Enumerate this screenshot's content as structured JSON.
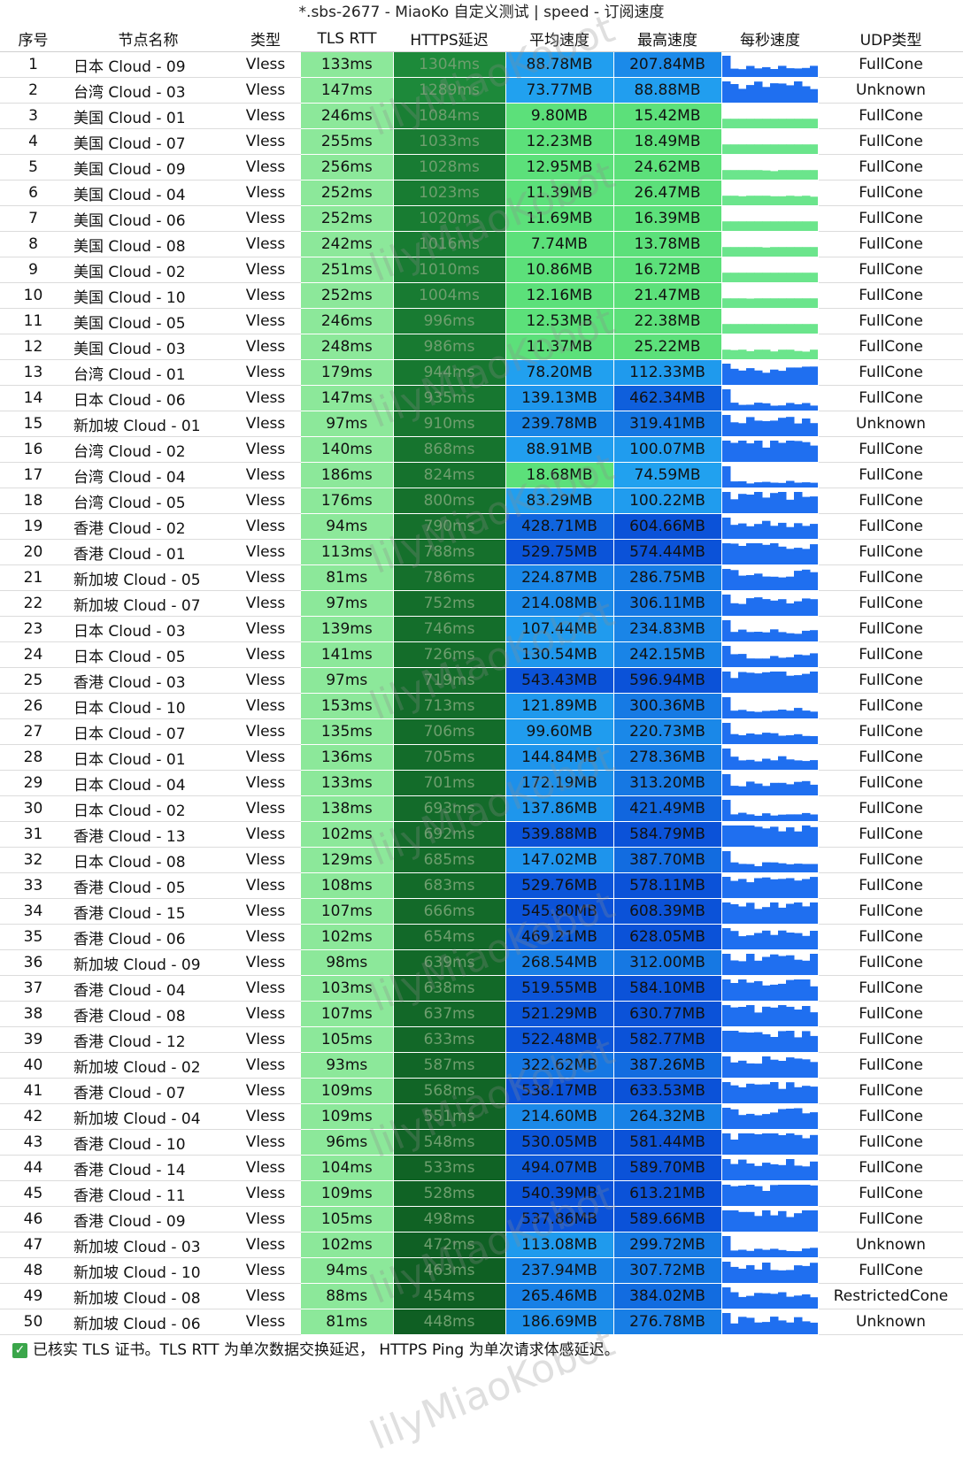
{
  "window_title": "*.sbs-2677 - MiaoKo 自定义测试 | speed - 订阅速度",
  "columns": [
    "序号",
    "节点名称",
    "类型",
    "TLS RTT",
    "HTTPS延迟",
    "平均速度",
    "最高速度",
    "每秒速度",
    "UDP类型"
  ],
  "watermark": "lilyMiaoKobot",
  "footer_text": "已核实 TLS 证书。TLS RTT 为单次数据交换延迟， HTTPS Ping 为单次请求体感延迟。",
  "colors": {
    "tls_bg": "#8ce89a",
    "https_high": "#1d8a3a",
    "https_low": "#0f5f23",
    "speed_blue_light": "#22a3f0",
    "speed_blue_dark": "#0b52d8",
    "speed_green": "#5ce07a",
    "spark_blue": "#1f6ff0",
    "spark_green": "#6be58c"
  },
  "rows": [
    {
      "idx": "1",
      "name": "日本 Cloud - 09",
      "type": "Vless",
      "tls": "133ms",
      "https": "1304ms",
      "avg": "88.78MB",
      "max": "207.84MB",
      "udp": "FullCone",
      "avg_mb": 88.78,
      "max_mb": 207.84
    },
    {
      "idx": "2",
      "name": "台湾 Cloud - 03",
      "type": "Vless",
      "tls": "147ms",
      "https": "1289ms",
      "avg": "73.77MB",
      "max": "88.88MB",
      "udp": "Unknown",
      "avg_mb": 73.77,
      "max_mb": 88.88
    },
    {
      "idx": "3",
      "name": "美国 Cloud - 01",
      "type": "Vless",
      "tls": "246ms",
      "https": "1084ms",
      "avg": "9.80MB",
      "max": "15.42MB",
      "udp": "FullCone",
      "avg_mb": 9.8,
      "max_mb": 15.42
    },
    {
      "idx": "4",
      "name": "美国 Cloud - 07",
      "type": "Vless",
      "tls": "255ms",
      "https": "1033ms",
      "avg": "12.23MB",
      "max": "18.49MB",
      "udp": "FullCone",
      "avg_mb": 12.23,
      "max_mb": 18.49
    },
    {
      "idx": "5",
      "name": "美国 Cloud - 09",
      "type": "Vless",
      "tls": "256ms",
      "https": "1028ms",
      "avg": "12.95MB",
      "max": "24.62MB",
      "udp": "FullCone",
      "avg_mb": 12.95,
      "max_mb": 24.62
    },
    {
      "idx": "6",
      "name": "美国 Cloud - 04",
      "type": "Vless",
      "tls": "252ms",
      "https": "1023ms",
      "avg": "11.39MB",
      "max": "26.47MB",
      "udp": "FullCone",
      "avg_mb": 11.39,
      "max_mb": 26.47
    },
    {
      "idx": "7",
      "name": "美国 Cloud - 06",
      "type": "Vless",
      "tls": "252ms",
      "https": "1020ms",
      "avg": "11.69MB",
      "max": "16.39MB",
      "udp": "FullCone",
      "avg_mb": 11.69,
      "max_mb": 16.39
    },
    {
      "idx": "8",
      "name": "美国 Cloud - 08",
      "type": "Vless",
      "tls": "242ms",
      "https": "1016ms",
      "avg": "7.74MB",
      "max": "13.78MB",
      "udp": "FullCone",
      "avg_mb": 7.74,
      "max_mb": 13.78
    },
    {
      "idx": "9",
      "name": "美国 Cloud - 02",
      "type": "Vless",
      "tls": "251ms",
      "https": "1010ms",
      "avg": "10.86MB",
      "max": "16.72MB",
      "udp": "FullCone",
      "avg_mb": 10.86,
      "max_mb": 16.72
    },
    {
      "idx": "10",
      "name": "美国 Cloud - 10",
      "type": "Vless",
      "tls": "252ms",
      "https": "1004ms",
      "avg": "12.16MB",
      "max": "21.47MB",
      "udp": "FullCone",
      "avg_mb": 12.16,
      "max_mb": 21.47
    },
    {
      "idx": "11",
      "name": "美国 Cloud - 05",
      "type": "Vless",
      "tls": "246ms",
      "https": "996ms",
      "avg": "12.53MB",
      "max": "22.38MB",
      "udp": "FullCone",
      "avg_mb": 12.53,
      "max_mb": 22.38
    },
    {
      "idx": "12",
      "name": "美国 Cloud - 03",
      "type": "Vless",
      "tls": "248ms",
      "https": "986ms",
      "avg": "11.37MB",
      "max": "25.22MB",
      "udp": "FullCone",
      "avg_mb": 11.37,
      "max_mb": 25.22
    },
    {
      "idx": "13",
      "name": "台湾 Cloud - 01",
      "type": "Vless",
      "tls": "179ms",
      "https": "944ms",
      "avg": "78.20MB",
      "max": "112.33MB",
      "udp": "FullCone",
      "avg_mb": 78.2,
      "max_mb": 112.33
    },
    {
      "idx": "14",
      "name": "日本 Cloud - 06",
      "type": "Vless",
      "tls": "147ms",
      "https": "935ms",
      "avg": "139.13MB",
      "max": "462.34MB",
      "udp": "FullCone",
      "avg_mb": 139.13,
      "max_mb": 462.34
    },
    {
      "idx": "15",
      "name": "新加坡 Cloud - 01",
      "type": "Vless",
      "tls": "97ms",
      "https": "910ms",
      "avg": "239.78MB",
      "max": "319.41MB",
      "udp": "Unknown",
      "avg_mb": 239.78,
      "max_mb": 319.41
    },
    {
      "idx": "16",
      "name": "台湾 Cloud - 02",
      "type": "Vless",
      "tls": "140ms",
      "https": "868ms",
      "avg": "88.91MB",
      "max": "100.07MB",
      "udp": "FullCone",
      "avg_mb": 88.91,
      "max_mb": 100.07
    },
    {
      "idx": "17",
      "name": "台湾 Cloud - 04",
      "type": "Vless",
      "tls": "186ms",
      "https": "824ms",
      "avg": "18.68MB",
      "max": "74.59MB",
      "udp": "FullCone",
      "avg_mb": 18.68,
      "max_mb": 74.59
    },
    {
      "idx": "18",
      "name": "台湾 Cloud - 05",
      "type": "Vless",
      "tls": "176ms",
      "https": "800ms",
      "avg": "83.29MB",
      "max": "100.22MB",
      "udp": "FullCone",
      "avg_mb": 83.29,
      "max_mb": 100.22
    },
    {
      "idx": "19",
      "name": "香港 Cloud - 02",
      "type": "Vless",
      "tls": "94ms",
      "https": "790ms",
      "avg": "428.71MB",
      "max": "604.66MB",
      "udp": "FullCone",
      "avg_mb": 428.71,
      "max_mb": 604.66
    },
    {
      "idx": "20",
      "name": "香港 Cloud - 01",
      "type": "Vless",
      "tls": "113ms",
      "https": "788ms",
      "avg": "529.75MB",
      "max": "574.44MB",
      "udp": "FullCone",
      "avg_mb": 529.75,
      "max_mb": 574.44
    },
    {
      "idx": "21",
      "name": "新加坡 Cloud - 05",
      "type": "Vless",
      "tls": "81ms",
      "https": "786ms",
      "avg": "224.87MB",
      "max": "286.75MB",
      "udp": "FullCone",
      "avg_mb": 224.87,
      "max_mb": 286.75
    },
    {
      "idx": "22",
      "name": "新加坡 Cloud - 07",
      "type": "Vless",
      "tls": "97ms",
      "https": "752ms",
      "avg": "214.08MB",
      "max": "306.11MB",
      "udp": "FullCone",
      "avg_mb": 214.08,
      "max_mb": 306.11
    },
    {
      "idx": "23",
      "name": "日本 Cloud - 03",
      "type": "Vless",
      "tls": "139ms",
      "https": "746ms",
      "avg": "107.44MB",
      "max": "234.83MB",
      "udp": "FullCone",
      "avg_mb": 107.44,
      "max_mb": 234.83
    },
    {
      "idx": "24",
      "name": "日本 Cloud - 05",
      "type": "Vless",
      "tls": "141ms",
      "https": "726ms",
      "avg": "130.54MB",
      "max": "242.15MB",
      "udp": "FullCone",
      "avg_mb": 130.54,
      "max_mb": 242.15
    },
    {
      "idx": "25",
      "name": "香港 Cloud - 03",
      "type": "Vless",
      "tls": "97ms",
      "https": "719ms",
      "avg": "543.43MB",
      "max": "596.94MB",
      "udp": "FullCone",
      "avg_mb": 543.43,
      "max_mb": 596.94
    },
    {
      "idx": "26",
      "name": "日本 Cloud - 10",
      "type": "Vless",
      "tls": "153ms",
      "https": "713ms",
      "avg": "121.89MB",
      "max": "300.36MB",
      "udp": "FullCone",
      "avg_mb": 121.89,
      "max_mb": 300.36
    },
    {
      "idx": "27",
      "name": "日本 Cloud - 07",
      "type": "Vless",
      "tls": "135ms",
      "https": "706ms",
      "avg": "99.60MB",
      "max": "220.73MB",
      "udp": "FullCone",
      "avg_mb": 99.6,
      "max_mb": 220.73
    },
    {
      "idx": "28",
      "name": "日本 Cloud - 01",
      "type": "Vless",
      "tls": "136ms",
      "https": "705ms",
      "avg": "144.84MB",
      "max": "278.36MB",
      "udp": "FullCone",
      "avg_mb": 144.84,
      "max_mb": 278.36
    },
    {
      "idx": "29",
      "name": "日本 Cloud - 04",
      "type": "Vless",
      "tls": "133ms",
      "https": "701ms",
      "avg": "172.19MB",
      "max": "313.20MB",
      "udp": "FullCone",
      "avg_mb": 172.19,
      "max_mb": 313.2
    },
    {
      "idx": "30",
      "name": "日本 Cloud - 02",
      "type": "Vless",
      "tls": "138ms",
      "https": "693ms",
      "avg": "137.86MB",
      "max": "421.49MB",
      "udp": "FullCone",
      "avg_mb": 137.86,
      "max_mb": 421.49
    },
    {
      "idx": "31",
      "name": "香港 Cloud - 13",
      "type": "Vless",
      "tls": "102ms",
      "https": "692ms",
      "avg": "539.88MB",
      "max": "584.79MB",
      "udp": "FullCone",
      "avg_mb": 539.88,
      "max_mb": 584.79
    },
    {
      "idx": "32",
      "name": "日本 Cloud - 08",
      "type": "Vless",
      "tls": "129ms",
      "https": "685ms",
      "avg": "147.02MB",
      "max": "387.70MB",
      "udp": "FullCone",
      "avg_mb": 147.02,
      "max_mb": 387.7
    },
    {
      "idx": "33",
      "name": "香港 Cloud - 05",
      "type": "Vless",
      "tls": "108ms",
      "https": "683ms",
      "avg": "529.76MB",
      "max": "578.11MB",
      "udp": "FullCone",
      "avg_mb": 529.76,
      "max_mb": 578.11
    },
    {
      "idx": "34",
      "name": "香港 Cloud - 15",
      "type": "Vless",
      "tls": "107ms",
      "https": "666ms",
      "avg": "545.80MB",
      "max": "608.39MB",
      "udp": "FullCone",
      "avg_mb": 545.8,
      "max_mb": 608.39
    },
    {
      "idx": "35",
      "name": "香港 Cloud - 06",
      "type": "Vless",
      "tls": "102ms",
      "https": "654ms",
      "avg": "469.21MB",
      "max": "628.05MB",
      "udp": "FullCone",
      "avg_mb": 469.21,
      "max_mb": 628.05
    },
    {
      "idx": "36",
      "name": "新加坡 Cloud - 09",
      "type": "Vless",
      "tls": "98ms",
      "https": "639ms",
      "avg": "268.54MB",
      "max": "312.00MB",
      "udp": "FullCone",
      "avg_mb": 268.54,
      "max_mb": 312.0
    },
    {
      "idx": "37",
      "name": "香港 Cloud - 04",
      "type": "Vless",
      "tls": "103ms",
      "https": "638ms",
      "avg": "519.55MB",
      "max": "584.10MB",
      "udp": "FullCone",
      "avg_mb": 519.55,
      "max_mb": 584.1
    },
    {
      "idx": "38",
      "name": "香港 Cloud - 08",
      "type": "Vless",
      "tls": "107ms",
      "https": "637ms",
      "avg": "521.29MB",
      "max": "630.77MB",
      "udp": "FullCone",
      "avg_mb": 521.29,
      "max_mb": 630.77
    },
    {
      "idx": "39",
      "name": "香港 Cloud - 12",
      "type": "Vless",
      "tls": "105ms",
      "https": "633ms",
      "avg": "522.48MB",
      "max": "582.77MB",
      "udp": "FullCone",
      "avg_mb": 522.48,
      "max_mb": 582.77
    },
    {
      "idx": "40",
      "name": "新加坡 Cloud - 02",
      "type": "Vless",
      "tls": "93ms",
      "https": "587ms",
      "avg": "322.62MB",
      "max": "387.26MB",
      "udp": "FullCone",
      "avg_mb": 322.62,
      "max_mb": 387.26
    },
    {
      "idx": "41",
      "name": "香港 Cloud - 07",
      "type": "Vless",
      "tls": "109ms",
      "https": "568ms",
      "avg": "538.17MB",
      "max": "633.53MB",
      "udp": "FullCone",
      "avg_mb": 538.17,
      "max_mb": 633.53
    },
    {
      "idx": "42",
      "name": "新加坡 Cloud - 04",
      "type": "Vless",
      "tls": "109ms",
      "https": "551ms",
      "avg": "214.60MB",
      "max": "264.32MB",
      "udp": "FullCone",
      "avg_mb": 214.6,
      "max_mb": 264.32
    },
    {
      "idx": "43",
      "name": "香港 Cloud - 10",
      "type": "Vless",
      "tls": "96ms",
      "https": "548ms",
      "avg": "530.05MB",
      "max": "581.44MB",
      "udp": "FullCone",
      "avg_mb": 530.05,
      "max_mb": 581.44
    },
    {
      "idx": "44",
      "name": "香港 Cloud - 14",
      "type": "Vless",
      "tls": "104ms",
      "https": "533ms",
      "avg": "494.07MB",
      "max": "589.70MB",
      "udp": "FullCone",
      "avg_mb": 494.07,
      "max_mb": 589.7
    },
    {
      "idx": "45",
      "name": "香港 Cloud - 11",
      "type": "Vless",
      "tls": "109ms",
      "https": "528ms",
      "avg": "540.39MB",
      "max": "613.21MB",
      "udp": "FullCone",
      "avg_mb": 540.39,
      "max_mb": 613.21
    },
    {
      "idx": "46",
      "name": "香港 Cloud - 09",
      "type": "Vless",
      "tls": "105ms",
      "https": "498ms",
      "avg": "537.86MB",
      "max": "589.66MB",
      "udp": "FullCone",
      "avg_mb": 537.86,
      "max_mb": 589.66
    },
    {
      "idx": "47",
      "name": "新加坡 Cloud - 03",
      "type": "Vless",
      "tls": "102ms",
      "https": "472ms",
      "avg": "113.08MB",
      "max": "299.72MB",
      "udp": "Unknown",
      "avg_mb": 113.08,
      "max_mb": 299.72
    },
    {
      "idx": "48",
      "name": "新加坡 Cloud - 10",
      "type": "Vless",
      "tls": "94ms",
      "https": "463ms",
      "avg": "237.94MB",
      "max": "307.72MB",
      "udp": "FullCone",
      "avg_mb": 237.94,
      "max_mb": 307.72
    },
    {
      "idx": "49",
      "name": "新加坡 Cloud - 08",
      "type": "Vless",
      "tls": "88ms",
      "https": "454ms",
      "avg": "265.46MB",
      "max": "384.02MB",
      "udp": "RestrictedCone",
      "avg_mb": 265.46,
      "max_mb": 384.02
    },
    {
      "idx": "50",
      "name": "新加坡 Cloud - 06",
      "type": "Vless",
      "tls": "81ms",
      "https": "448ms",
      "avg": "186.69MB",
      "max": "276.78MB",
      "udp": "Unknown",
      "avg_mb": 186.69,
      "max_mb": 276.78
    }
  ]
}
